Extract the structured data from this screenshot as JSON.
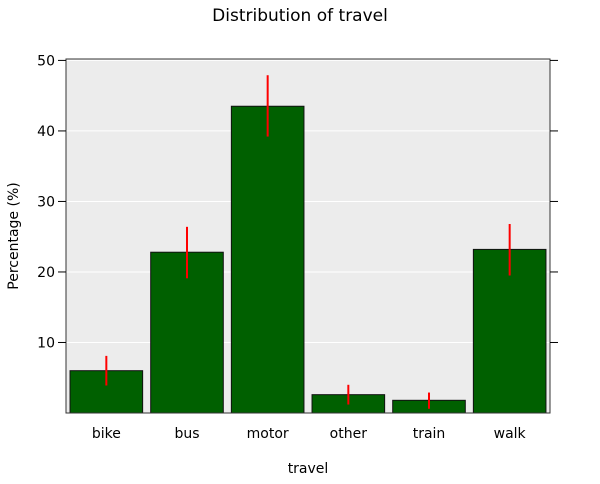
{
  "chart_data": {
    "type": "bar",
    "title": "Distribution of travel",
    "xlabel": "travel",
    "ylabel": "Percentage (%)",
    "categories": [
      "bike",
      "bus",
      "motor",
      "other",
      "train",
      "walk"
    ],
    "values": [
      6.0,
      22.8,
      43.5,
      2.6,
      1.8,
      23.2
    ],
    "error_bars": {
      "lower": [
        3.9,
        19.1,
        39.2,
        1.2,
        0.6,
        19.5
      ],
      "upper": [
        8.1,
        26.4,
        47.9,
        4.0,
        2.9,
        26.8
      ]
    },
    "ylim": [
      0,
      50.2
    ],
    "yticks": [
      10,
      20,
      30,
      40,
      50
    ],
    "grid": "horizontal",
    "colors": {
      "bar": "#006000",
      "error_bar": "#ff0000",
      "panel": "#ececec",
      "gridline": "#ffffff"
    }
  }
}
